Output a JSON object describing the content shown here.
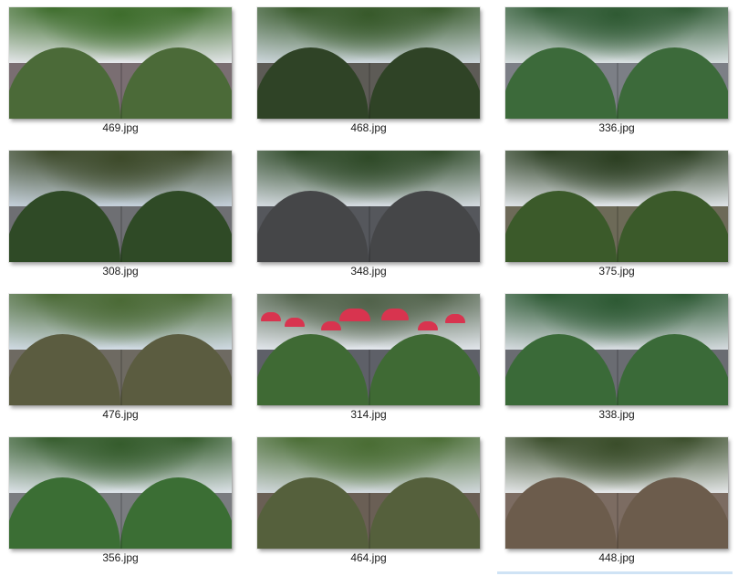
{
  "files": [
    {
      "name": "469.jpg",
      "sky": "#e6e8ec",
      "canopy": "#3e6d2c",
      "ground": "#7a6e72",
      "bump": "#4b6a38"
    },
    {
      "name": "468.jpg",
      "sky": "#cfd8de",
      "canopy": "#37592a",
      "ground": "#5d5b56",
      "bump": "#2f4326"
    },
    {
      "name": "336.jpg",
      "sky": "#d9e0e2",
      "canopy": "#2f5a33",
      "ground": "#7c7f86",
      "bump": "#3c6a3a"
    },
    {
      "name": "308.jpg",
      "sky": "#c6d1dc",
      "canopy": "#3d4a2a",
      "ground": "#6e6f73",
      "bump": "#2f4a26"
    },
    {
      "name": "348.jpg",
      "sky": "#d6dce2",
      "canopy": "#2f4a28",
      "ground": "#55575c",
      "bump": "#454648"
    },
    {
      "name": "375.jpg",
      "sky": "#e2e6ea",
      "canopy": "#2c3f22",
      "ground": "#6d6a58",
      "bump": "#3b5a2a"
    },
    {
      "name": "476.jpg",
      "sky": "#d2dce6",
      "canopy": "#4b6a36",
      "ground": "#6e6a62",
      "bump": "#5b5c40"
    },
    {
      "name": "314.jpg",
      "sky": "#e4e8ee",
      "canopy": "#51624a",
      "ground": "#5e6068",
      "bump": "#3f6a34"
    },
    {
      "name": "338.jpg",
      "sky": "#d8dde2",
      "canopy": "#2e5a34",
      "ground": "#6a6c72",
      "bump": "#3a6a38"
    },
    {
      "name": "356.jpg",
      "sky": "#dee4ea",
      "canopy": "#355c2c",
      "ground": "#7a7c80",
      "bump": "#3b6e34"
    },
    {
      "name": "464.jpg",
      "sky": "#d4dadf",
      "canopy": "#4a6d34",
      "ground": "#6a5f55",
      "bump": "#55603c"
    },
    {
      "name": "448.jpg",
      "sky": "#e6e8ea",
      "canopy": "#3a4d2a",
      "ground": "#7c6c62",
      "bump": "#6c5c4c"
    }
  ]
}
